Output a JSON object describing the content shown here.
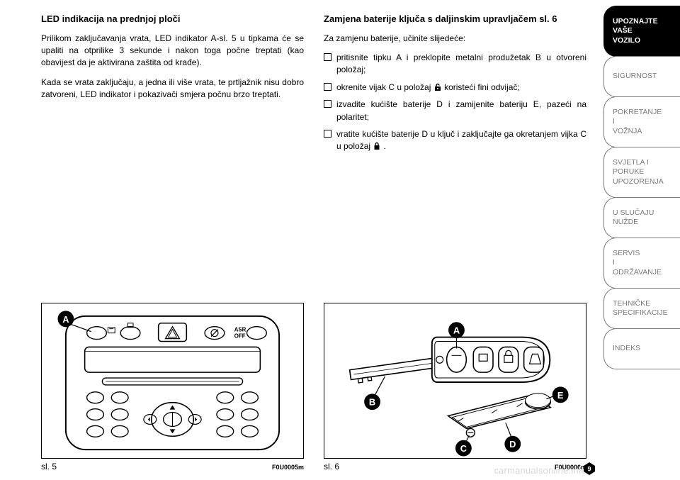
{
  "leftColumn": {
    "title": "LED indikacija na prednjoj ploči",
    "para1": "Prilikom zaključavanja vrata, LED indikator A-sl. 5 u tipkama će se upaliti na otprilike 3 sekunde i nakon toga počne treptati (kao obavijest da je aktivirana zaštita od krađe).",
    "para2": "Kada se vrata zaključaju, a jedna ili više vrata, te prtljažnik nisu dobro zatvoreni, LED indikator i pokazivači smjera počnu brzo treptati."
  },
  "rightColumn": {
    "title": "Zamjena baterije ključa s daljinskim upravljačem sl. 6",
    "para1": "Za zamjenu baterije, učinite slijedeće:",
    "bullets": [
      {
        "pre": "pritisnite tipku A i preklopite metalni produžetak B u otvoreni položaj;",
        "iconAfter": null
      },
      {
        "pre": "okrenite vijak C u položaj ",
        "icon": "unlock",
        "post": " koristeći fini odvijač;"
      },
      {
        "pre": "izvadite kućište baterije D i zamijenite bateriju E, pazeći na polaritet;",
        "iconAfter": null
      },
      {
        "pre": "vratite kućište baterije D u ključ i zaključajte ga okretanjem vijka C u položaj ",
        "icon": "lock",
        "post": " ."
      }
    ]
  },
  "figures": {
    "left": {
      "caption": "sl. 5",
      "code": "F0U0005m",
      "labels": [
        "A"
      ],
      "panelText": "ASR\nOFF"
    },
    "right": {
      "caption": "sl. 6",
      "code": "F0U0006m",
      "labels": [
        "A",
        "B",
        "C",
        "D",
        "E"
      ]
    }
  },
  "sidebar": {
    "tabs": [
      {
        "label": "UPOZNAJTE\nVAŠE\nVOZILO",
        "active": true
      },
      {
        "label": "SIGURNOST",
        "active": false
      },
      {
        "label": "POKRETANJE\nI\nVOŽNJA",
        "active": false
      },
      {
        "label": "SVJETLA I\nPORUKE\nUPOZORENJA",
        "active": false
      },
      {
        "label": "U SLUČAJU\nNUŽDE",
        "active": false
      },
      {
        "label": "SERVIS\nI\nODRŽAVANJE",
        "active": false
      },
      {
        "label": "TEHNIČKE\nSPECIFIKACIJE",
        "active": false
      },
      {
        "label": "INDEKS",
        "active": false
      }
    ]
  },
  "pageNumber": "9",
  "watermark": "carmanualsonline.info",
  "colors": {
    "text": "#000000",
    "tabInactiveText": "#7a7a7a",
    "tabActiveBg": "#000000",
    "watermark": "#d8d8d8"
  }
}
